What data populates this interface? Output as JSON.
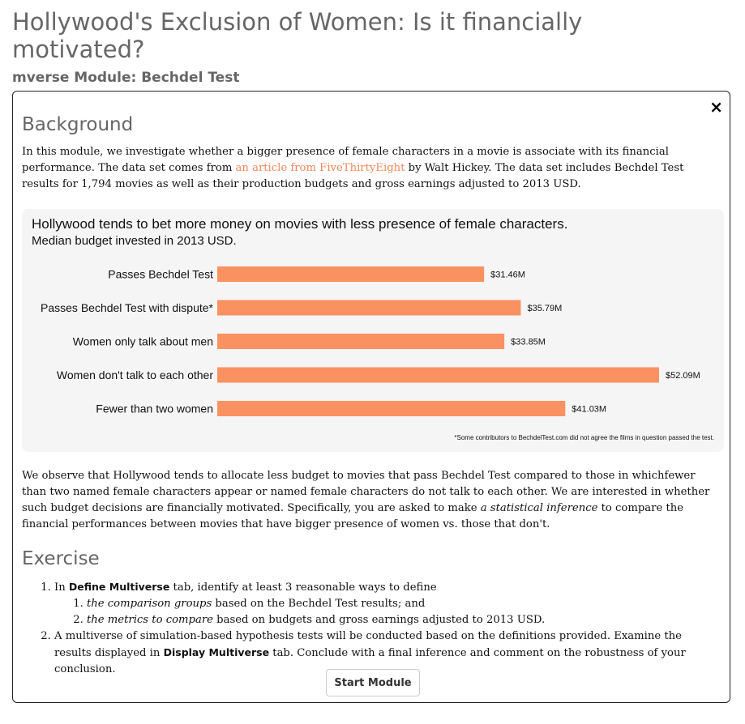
{
  "page": {
    "title": "Hollywood's Exclusion of Women: Is it financially motivated?",
    "subtitle": "mverse Module: Bechdel Test"
  },
  "modal": {
    "close_glyph": "×",
    "background_heading": "Background",
    "background_text_1": "In this module, we investigate whether a bigger presence of female characters in a movie is associate with its financial performance. The data set comes from ",
    "background_link": "an article from FiveThirtyEight",
    "background_text_2": " by Walt Hickey. The data set includes Bechdel Test results for 1,794 movies as well as their production budgets and gross earnings adjusted to 2013 USD.",
    "observe_text_1": "We observe that Hollywood tends to allocate less budget to movies that pass Bechdel Test compared to those in whichfewer than two named female characters appear or named female characters do not talk to each other. We are interested in whether such budget decisions are financially motivated. Specifically, you are asked to make ",
    "observe_emph": "a statistical inference",
    "observe_text_2": " to compare the financial performances between movies that have bigger presence of women vs. those that don't.",
    "exercise_heading": "Exercise",
    "exercise": {
      "item1_pre": "In ",
      "item1_bold": "Define Multiverse",
      "item1_post": " tab, identify at least 3 reasonable ways to define",
      "sub1_emph": "the comparison groups",
      "sub1_post": " based on the Bechdel Test results; and",
      "sub2_emph": "the metrics to compare",
      "sub2_post": " based on budgets and gross earnings adjusted to 2013 USD.",
      "item2_pre": "A multiverse of simulation-based hypothesis tests will be conducted based on the definitions provided. Examine the results displayed in ",
      "item2_bold": "Display Multiverse",
      "item2_post": " tab. Conclude with a final inference and comment on the robustness of your conclusion."
    },
    "start_button": "Start Module"
  },
  "chart_data": {
    "type": "bar",
    "orientation": "horizontal",
    "title": "Hollywood tends to bet more money on movies with less presence of female characters.",
    "subtitle": "Median budget invested in 2013 USD.",
    "categories": [
      "Passes Bechdel Test",
      "Passes Bechdel Test with dispute*",
      "Women only talk about men",
      "Women don't talk to each other",
      "Fewer than two women"
    ],
    "values": [
      31.46,
      35.79,
      33.85,
      52.09,
      41.03
    ],
    "value_labels": [
      "$31.46M",
      "$35.79M",
      "$33.85M",
      "$52.09M",
      "$41.03M"
    ],
    "unit": "M USD",
    "bar_color": "#fa9160",
    "xlim": [
      0,
      52.09
    ],
    "grid": false,
    "footnote": "*Some contributors to BechdelTest.com did not agree the films in question passed the test."
  }
}
